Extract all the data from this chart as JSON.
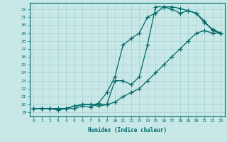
{
  "xlabel": "Humidex (Indice chaleur)",
  "bg_color": "#c8e8e8",
  "grid_color": "#a8d0d0",
  "line_color": "#006868",
  "xlim": [
    -0.5,
    23.5
  ],
  "ylim": [
    18.5,
    32.8
  ],
  "yticks": [
    19,
    20,
    21,
    22,
    23,
    24,
    25,
    26,
    27,
    28,
    29,
    30,
    31,
    32
  ],
  "xticks": [
    0,
    1,
    2,
    3,
    4,
    5,
    6,
    7,
    8,
    9,
    10,
    11,
    12,
    13,
    14,
    15,
    16,
    17,
    18,
    19,
    20,
    21,
    22,
    23
  ],
  "line1_x": [
    0,
    1,
    2,
    3,
    4,
    5,
    6,
    7,
    8,
    9,
    10,
    11,
    12,
    13,
    14,
    15,
    16,
    17,
    18,
    19,
    20,
    21,
    22,
    23
  ],
  "line1_y": [
    19.5,
    19.5,
    19.5,
    19.3,
    19.5,
    19.5,
    19.8,
    19.7,
    20.2,
    21.5,
    23.5,
    27.5,
    28.3,
    29.0,
    31.0,
    31.5,
    32.3,
    32.3,
    32.1,
    31.8,
    31.5,
    30.5,
    29.3,
    29.0
  ],
  "line2_x": [
    0,
    1,
    2,
    3,
    4,
    5,
    6,
    7,
    8,
    9,
    10,
    11,
    12,
    13,
    14,
    15,
    16,
    17,
    18,
    19,
    20,
    21,
    22,
    23
  ],
  "line2_y": [
    19.5,
    19.5,
    19.5,
    19.5,
    19.5,
    19.8,
    20.0,
    20.0,
    19.8,
    20.0,
    23.0,
    23.0,
    22.5,
    23.5,
    27.5,
    32.3,
    32.3,
    32.0,
    31.5,
    31.8,
    31.5,
    30.3,
    29.5,
    29.0
  ],
  "line3_x": [
    0,
    1,
    2,
    3,
    4,
    5,
    6,
    7,
    8,
    9,
    10,
    11,
    12,
    13,
    14,
    15,
    16,
    17,
    18,
    19,
    20,
    21,
    22,
    23
  ],
  "line3_y": [
    19.5,
    19.5,
    19.5,
    19.5,
    19.5,
    19.8,
    20.0,
    20.0,
    20.0,
    20.0,
    20.3,
    21.0,
    21.5,
    22.0,
    23.0,
    24.0,
    25.0,
    26.0,
    27.0,
    28.0,
    29.0,
    29.3,
    29.0,
    29.0
  ]
}
